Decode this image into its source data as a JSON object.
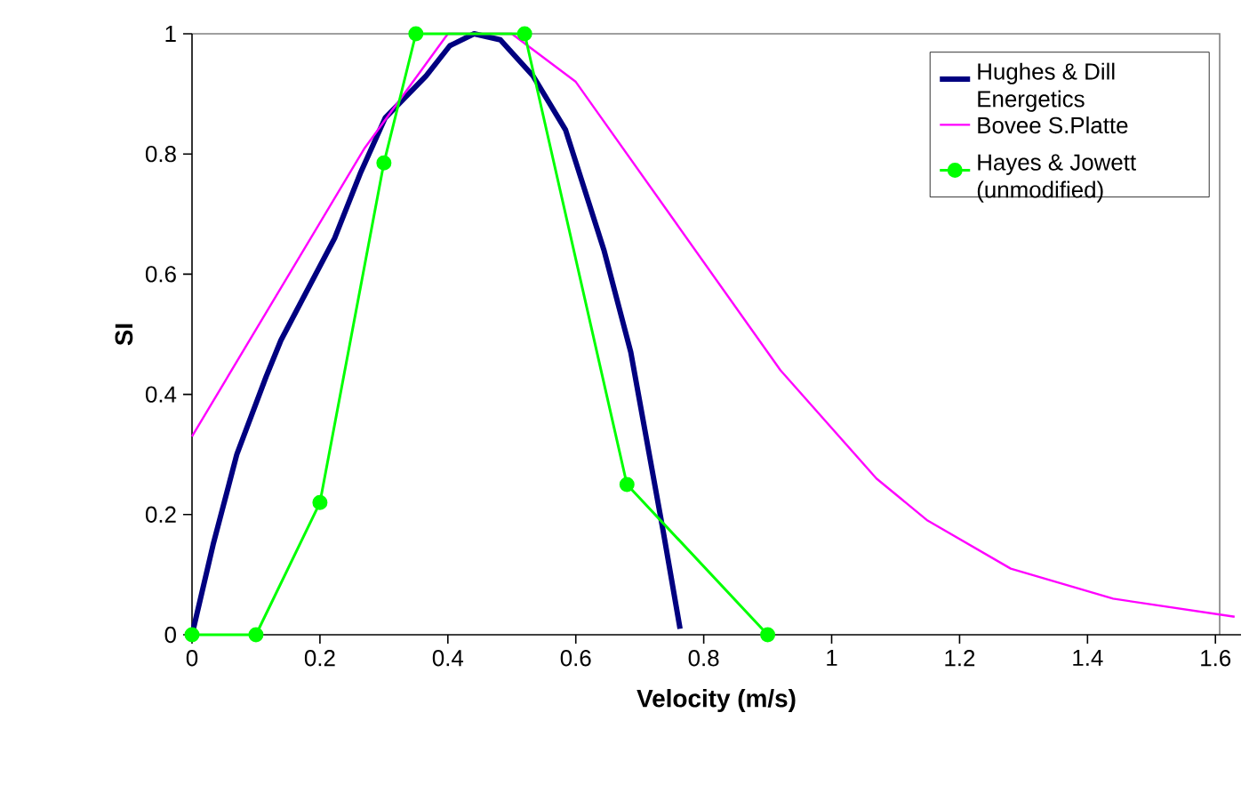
{
  "chart_data": {
    "type": "line",
    "xlabel": "Velocity (m/s)",
    "ylabel": "SI",
    "xlim": [
      0,
      1.64
    ],
    "ylim": [
      0,
      1
    ],
    "xticks": [
      0,
      0.2,
      0.4,
      0.6,
      0.8,
      1,
      1.2,
      1.4,
      1.6
    ],
    "yticks": [
      0,
      0.2,
      0.4,
      0.6,
      0.8,
      1
    ],
    "legend": "top right",
    "grid": false,
    "series": [
      {
        "name": "Hughes & Dill Energetics",
        "color": "#000080",
        "marker": "none",
        "x": [
          0,
          0.033,
          0.07,
          0.116,
          0.139,
          0.223,
          0.264,
          0.302,
          0.366,
          0.403,
          0.441,
          0.482,
          0.533,
          0.584,
          0.644,
          0.686,
          0.737,
          0.763
        ],
        "values": [
          0,
          0.15,
          0.3,
          0.43,
          0.49,
          0.66,
          0.77,
          0.86,
          0.93,
          0.98,
          1,
          0.99,
          0.93,
          0.84,
          0.64,
          0.47,
          0.17,
          0.01
        ]
      },
      {
        "name": "Bovee S.Platte",
        "color": "#ff00ff",
        "marker": "none",
        "x": [
          0,
          0.27,
          0.4,
          0.5,
          0.6,
          0.92,
          1.07,
          1.15,
          1.28,
          1.44,
          1.63
        ],
        "values": [
          0.33,
          0.81,
          1,
          1,
          0.92,
          0.44,
          0.26,
          0.19,
          0.11,
          0.06,
          0.03
        ]
      },
      {
        "name": "Hayes & Jowett (unmodified)",
        "color": "#00ff00",
        "marker": "circle",
        "x": [
          0,
          0.1,
          0.2,
          0.3,
          0.35,
          0.52,
          0.68,
          0.9
        ],
        "values": [
          0,
          0,
          0.22,
          0.785,
          1,
          1,
          0.25,
          0
        ]
      }
    ]
  }
}
